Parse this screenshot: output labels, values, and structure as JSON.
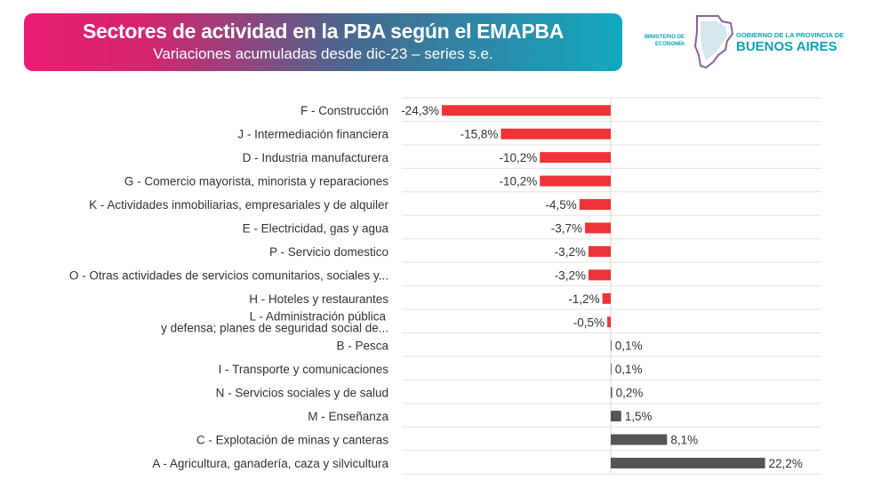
{
  "header": {
    "title": "Sectores de actividad en la PBA según el EMAPBA",
    "subtitle": "Variaciones acumuladas desde dic-23 – series s.e."
  },
  "logo": {
    "ministry": "MINISTERIO DE ECONOMÍA",
    "gov": "GOBIERNO DE LA PROVINCIA DE",
    "province": "BUENOS AIRES"
  },
  "chart_data": {
    "type": "bar",
    "orientation": "horizontal",
    "title": "Sectores de actividad en la PBA según el EMAPBA",
    "subtitle": "Variaciones acumuladas desde dic-23 – series s.e.",
    "unit": "%",
    "categories": [
      [
        "F - Construcción"
      ],
      [
        "J - Intermediación financiera"
      ],
      [
        "D - Industria manufacturera"
      ],
      [
        "G - Comercio mayorista, minorista y reparaciones"
      ],
      [
        "K - Actividades inmobiliarias, empresariales y de alquiler"
      ],
      [
        "E - Electricidad, gas y agua"
      ],
      [
        "P - Servicio domestico"
      ],
      [
        "O - Otras actividades de servicios comunitarios, sociales y..."
      ],
      [
        "H - Hoteles y restaurantes"
      ],
      [
        "L - Administración pública",
        "y defensa; planes de seguridad social de..."
      ],
      [
        "B - Pesca"
      ],
      [
        "I - Transporte y comunicaciones"
      ],
      [
        "N - Servicios sociales y de salud"
      ],
      [
        "M - Enseñanza"
      ],
      [
        "C - Explotación de minas y canteras"
      ],
      [
        "A -  Agricultura, ganadería, caza y silvicultura"
      ]
    ],
    "values": [
      -24.3,
      -15.8,
      -10.2,
      -10.2,
      -4.5,
      -3.7,
      -3.2,
      -3.2,
      -1.2,
      -0.5,
      0.1,
      0.1,
      0.2,
      1.5,
      8.1,
      22.2
    ],
    "value_labels": [
      "-24,3%",
      "-15,8%",
      "-10,2%",
      "-10,2%",
      "-4,5%",
      "-3,7%",
      "-3,2%",
      "-3,2%",
      "-1,2%",
      "-0,5%",
      "0,1%",
      "0,1%",
      "0,2%",
      "1,5%",
      "8,1%",
      "22,2%"
    ],
    "colors": {
      "negative": "#ee3338",
      "positive": "#555555"
    },
    "grid": true
  }
}
